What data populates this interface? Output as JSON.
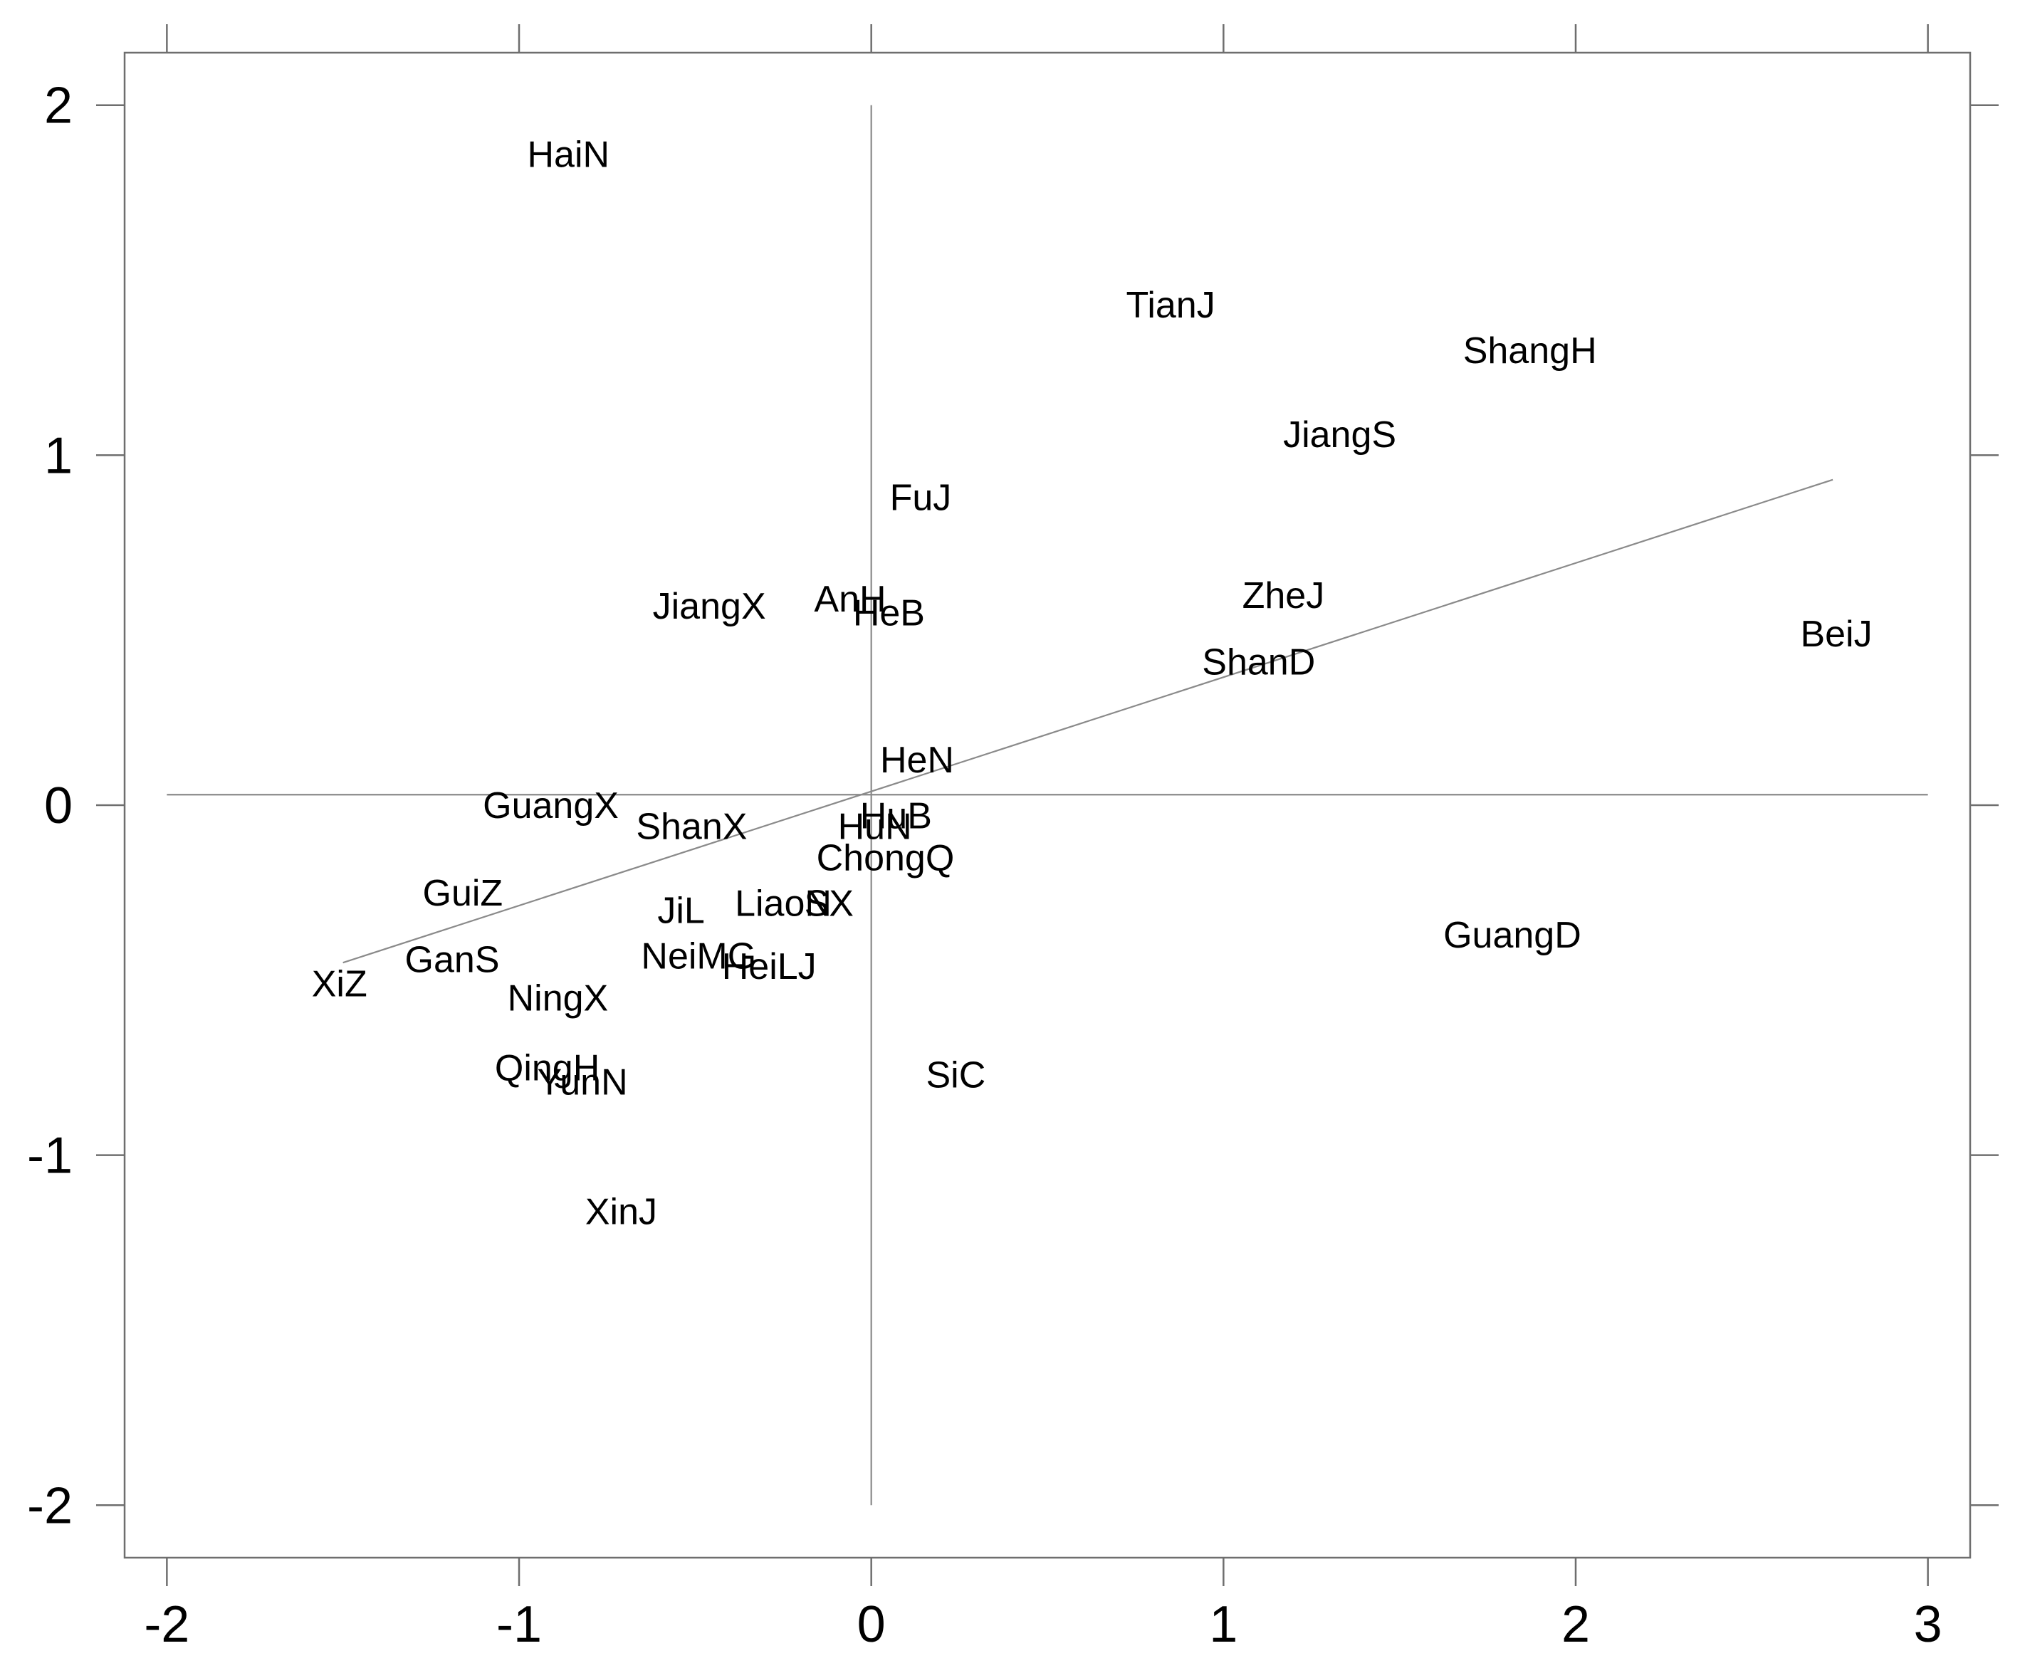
{
  "chart_data": {
    "type": "scatter",
    "title": "",
    "xlabel": "",
    "ylabel": "",
    "xlim": [
      -2.12,
      3.12
    ],
    "ylim": [
      -2.15,
      2.15
    ],
    "grid": false,
    "x_ticks": [
      -2,
      -1,
      0,
      1,
      2,
      3
    ],
    "y_ticks": [
      -2,
      -1,
      0,
      1,
      2
    ],
    "x_tick_labels": [
      "-2",
      "-1",
      "0",
      "1",
      "2",
      "3"
    ],
    "y_tick_labels": [
      "-2",
      "-1",
      "0",
      "1",
      "2"
    ],
    "reference_lines": {
      "horizontal_y": 0.03,
      "vertical_x": 0
    },
    "fit_line": {
      "x": [
        -1.5,
        2.73
      ],
      "y": [
        -0.45,
        0.93
      ]
    },
    "points": [
      {
        "label": "HaiN",
        "x": -0.86,
        "y": 1.86
      },
      {
        "label": "TianJ",
        "x": 0.85,
        "y": 1.43
      },
      {
        "label": "ShangH",
        "x": 1.87,
        "y": 1.3
      },
      {
        "label": "JiangS",
        "x": 1.33,
        "y": 1.06
      },
      {
        "label": "FuJ",
        "x": 0.14,
        "y": 0.88
      },
      {
        "label": "JiangX",
        "x": -0.46,
        "y": 0.57
      },
      {
        "label": "AnH",
        "x": -0.06,
        "y": 0.59
      },
      {
        "label": "HeB",
        "x": 0.05,
        "y": 0.55
      },
      {
        "label": "ZheJ",
        "x": 1.17,
        "y": 0.6
      },
      {
        "label": "ShanD",
        "x": 1.1,
        "y": 0.41
      },
      {
        "label": "BeiJ",
        "x": 2.74,
        "y": 0.49
      },
      {
        "label": "HeN",
        "x": 0.13,
        "y": 0.13
      },
      {
        "label": "GuangX",
        "x": -0.91,
        "y": 0.0
      },
      {
        "label": "ShanX",
        "x": -0.51,
        "y": -0.06
      },
      {
        "label": "HuN",
        "x": 0.01,
        "y": -0.06
      },
      {
        "label": "HuB",
        "x": 0.07,
        "y": -0.03
      },
      {
        "label": "ChongQ",
        "x": 0.04,
        "y": -0.15
      },
      {
        "label": "GuiZ",
        "x": -1.16,
        "y": -0.25
      },
      {
        "label": "JiL",
        "x": -0.54,
        "y": -0.3
      },
      {
        "label": "LiaoN",
        "x": -0.25,
        "y": -0.28
      },
      {
        "label": "SX",
        "x": -0.12,
        "y": -0.28
      },
      {
        "label": "GuangD",
        "x": 1.82,
        "y": -0.37
      },
      {
        "label": "GanS",
        "x": -1.19,
        "y": -0.44
      },
      {
        "label": "NeiMG",
        "x": -0.49,
        "y": -0.43
      },
      {
        "label": "HeiLJ",
        "x": -0.29,
        "y": -0.46
      },
      {
        "label": "XiZ",
        "x": -1.51,
        "y": -0.51
      },
      {
        "label": "NingX",
        "x": -0.89,
        "y": -0.55
      },
      {
        "label": "QingH",
        "x": -0.92,
        "y": -0.75
      },
      {
        "label": "YunN",
        "x": -0.82,
        "y": -0.79
      },
      {
        "label": "SiC",
        "x": 0.24,
        "y": -0.77
      },
      {
        "label": "XinJ",
        "x": -0.71,
        "y": -1.16
      }
    ]
  }
}
